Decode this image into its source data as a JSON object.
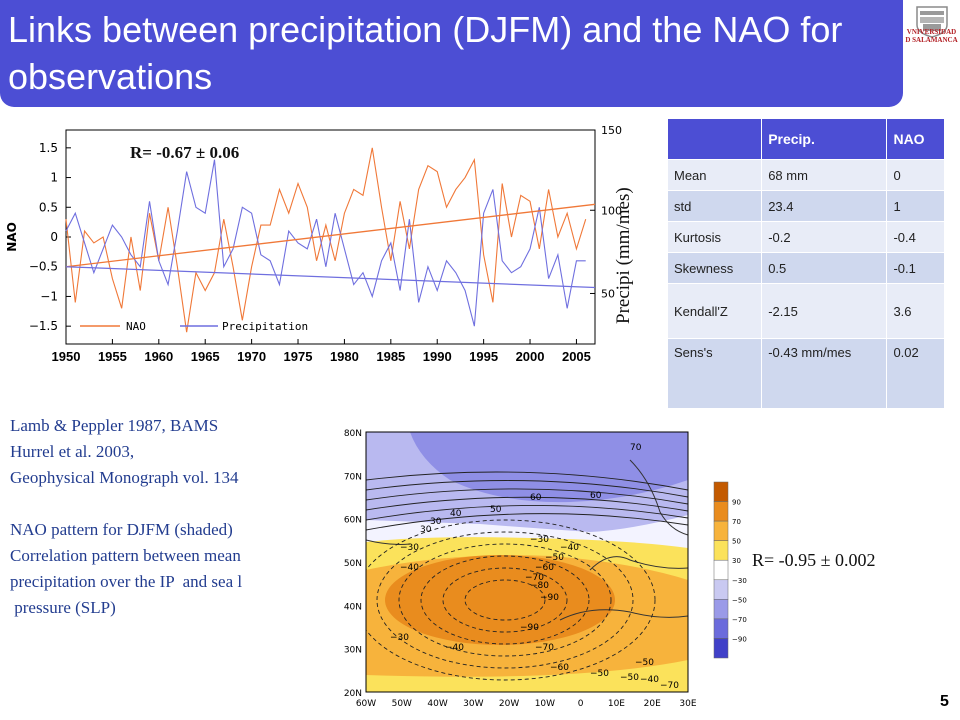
{
  "title": "Links between precipitation (DJFM) and the NAO for observations",
  "logo": {
    "name_line1": "VNIVERSIDAD",
    "name_line2": "D SALAMANCA",
    "icon": "university-crest-icon",
    "color": "#b21f24"
  },
  "page_number": "5",
  "chart_data": [
    {
      "type": "line",
      "title": "",
      "annotation": "R= -0.67 ± 0.06",
      "ylabel": "NAO",
      "ylabel_right": "Precipi (mm/mes)",
      "x": [
        1950,
        1951,
        1952,
        1953,
        1954,
        1955,
        1956,
        1957,
        1958,
        1959,
        1960,
        1961,
        1962,
        1963,
        1964,
        1965,
        1966,
        1967,
        1968,
        1969,
        1970,
        1971,
        1972,
        1973,
        1974,
        1975,
        1976,
        1977,
        1978,
        1979,
        1980,
        1981,
        1982,
        1983,
        1984,
        1985,
        1986,
        1987,
        1988,
        1989,
        1990,
        1991,
        1992,
        1993,
        1994,
        1995,
        1996,
        1997,
        1998,
        1999,
        2000,
        2001,
        2002,
        2003,
        2004,
        2005,
        2006
      ],
      "xlim": [
        1950,
        2007
      ],
      "xticks": [
        "1950",
        "1955",
        "1960",
        "1965",
        "1970",
        "1975",
        "1980",
        "1985",
        "1990",
        "1995",
        "2000",
        "2005"
      ],
      "yticks_left": [
        "1.5",
        "1",
        "0.5",
        "0",
        "−0.5",
        "−1",
        "−1.5"
      ],
      "ylim_left": [
        -1.8,
        1.8
      ],
      "yticks_right": [
        "150",
        "100",
        "50"
      ],
      "series": [
        {
          "name": "NAO",
          "color": "#f07838",
          "values": [
            0.3,
            -1.1,
            0.1,
            -0.1,
            0.0,
            -0.7,
            -1.2,
            0.0,
            -0.9,
            0.4,
            -0.4,
            0.5,
            -0.5,
            -1.6,
            -0.6,
            -0.9,
            -0.6,
            0.3,
            -0.5,
            -1.4,
            -0.5,
            0.2,
            0.2,
            0.8,
            0.4,
            0.9,
            0.5,
            -0.4,
            0.2,
            -0.4,
            0.4,
            0.8,
            0.7,
            1.5,
            0.5,
            -0.4,
            0.6,
            -0.2,
            0.8,
            1.2,
            1.1,
            0.5,
            0.8,
            1.0,
            1.3,
            -0.3,
            -1.1,
            0.9,
            0.0,
            0.7,
            0.6,
            -0.2,
            0.8,
            0.0,
            0.4,
            -0.2,
            0.3
          ]
        },
        {
          "name": "Precipitation",
          "trend_left_units": [
            -0.5,
            -0.85
          ],
          "color": "#6f6fdf",
          "values": [
            0.1,
            0.4,
            -0.1,
            -0.6,
            -0.2,
            0.2,
            0.0,
            -0.3,
            -0.5,
            0.6,
            -0.4,
            -0.8,
            0.1,
            1.1,
            0.5,
            0.4,
            1.3,
            -0.5,
            -0.2,
            0.5,
            0.4,
            -0.3,
            -0.4,
            -0.8,
            0.1,
            -0.1,
            -0.2,
            0.3,
            -0.5,
            0.4,
            -0.2,
            -0.8,
            -0.6,
            -1.0,
            -0.4,
            -0.1,
            -0.9,
            0.3,
            -1.1,
            -0.5,
            -0.9,
            -0.4,
            -0.6,
            -0.9,
            -1.5,
            0.4,
            0.8,
            -0.4,
            -0.6,
            -0.5,
            -0.2,
            0.5,
            -0.7,
            -0.3,
            -1.2,
            -0.4,
            -0.4
          ]
        }
      ],
      "trend_nao": [
        -0.5,
        0.55
      ],
      "legend": "bottom-left",
      "grid": false
    }
  ],
  "table": {
    "headers": [
      "",
      "Precip.",
      "NAO"
    ],
    "rows": [
      [
        "Mean",
        "68 mm",
        "0"
      ],
      [
        "std",
        "23.4",
        "1"
      ],
      [
        "Kurtosis",
        "-0.2",
        "-0.4"
      ],
      [
        "Skewness",
        "0.5",
        "-0.1"
      ],
      [
        "Kendall'Z",
        "-2.15",
        "3.6"
      ],
      [
        "Sens's",
        "-0.43 mm/mes",
        "0.02"
      ]
    ]
  },
  "references": {
    "line1": "Lamb & Peppler 1987, BAMS",
    "line2": "Hurrel et al. 2003,",
    "line3": "Geophysical Monograph vol. 134",
    "line4": "NAO pattern for DJFM (shaded)",
    "line5": "Correlation pattern between mean",
    "line6": "precipitation over the IP  and sea l",
    "line7": " pressure (SLP)"
  },
  "map": {
    "lat_labels": [
      "80N",
      "70N",
      "60N",
      "50N",
      "40N",
      "30N",
      "20N"
    ],
    "lon_labels": [
      "60W",
      "50W",
      "40W",
      "30W",
      "20W",
      "10W",
      "0",
      "10E",
      "20E",
      "30E"
    ],
    "contour_labels": [
      "70",
      "60",
      "60",
      "50",
      "40",
      "30",
      "30",
      "−30",
      "−30",
      "−40",
      "−40",
      "−50",
      "−60",
      "−70",
      "−80",
      "−90",
      "−90",
      "−70",
      "−60",
      "−40",
      "−30",
      "−50",
      "−50",
      "−40",
      "−50",
      "−70"
    ],
    "correlation": "R= -0.95 ± 0.002"
  },
  "colorbar": {
    "labels": [
      "90",
      "70",
      "50",
      "30",
      "−30",
      "−50",
      "−70",
      "−90"
    ],
    "colors": [
      "#c35a00",
      "#e98c1e",
      "#f7b33c",
      "#fbe25b",
      "#ffffff",
      "#c9c9f1",
      "#9a9ae8",
      "#6b6bdc",
      "#4040c8"
    ]
  }
}
